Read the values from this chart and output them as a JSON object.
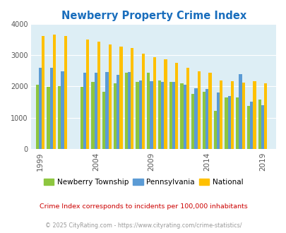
{
  "title": "Newberry Property Crime Index",
  "title_color": "#1a6ebd",
  "years": [
    1999,
    2000,
    2001,
    2003,
    2004,
    2005,
    2006,
    2007,
    2008,
    2009,
    2010,
    2011,
    2012,
    2013,
    2014,
    2015,
    2016,
    2017,
    2018,
    2019
  ],
  "newberry": [
    2050,
    1990,
    2000,
    1990,
    2150,
    1830,
    2100,
    2450,
    2150,
    2450,
    2200,
    2150,
    2100,
    1760,
    1830,
    1220,
    1650,
    1650,
    1380,
    1580
  ],
  "pennsylvania": [
    2600,
    2600,
    2480,
    2430,
    2430,
    2460,
    2380,
    2460,
    2200,
    2180,
    2150,
    2150,
    2060,
    1940,
    1920,
    1800,
    1700,
    2390,
    1510,
    1400
  ],
  "national": [
    3620,
    3660,
    3620,
    3510,
    3440,
    3340,
    3280,
    3220,
    3040,
    2940,
    2880,
    2760,
    2600,
    2490,
    2450,
    2200,
    2170,
    2120,
    2180,
    2100
  ],
  "xtick_labels": [
    "1999",
    "2004",
    "2009",
    "2014",
    "2019"
  ],
  "xtick_year_positions": [
    1999,
    2004,
    2009,
    2014,
    2019
  ],
  "ylim": [
    0,
    4000
  ],
  "yticks": [
    0,
    1000,
    2000,
    3000,
    4000
  ],
  "color_newberry": "#8dc63f",
  "color_pennsylvania": "#5b9bd5",
  "color_national": "#ffc000",
  "bg_color": "#ddeef5",
  "fig_bg": "#ffffff",
  "bar_width": 0.27,
  "legend_labels": [
    "Newberry Township",
    "Pennsylvania",
    "National"
  ],
  "footnote1": "Crime Index corresponds to incidents per 100,000 inhabitants",
  "footnote2": "© 2025 CityRating.com - https://www.cityrating.com/crime-statistics/",
  "footnote1_color": "#cc0000",
  "footnote2_color": "#999999"
}
